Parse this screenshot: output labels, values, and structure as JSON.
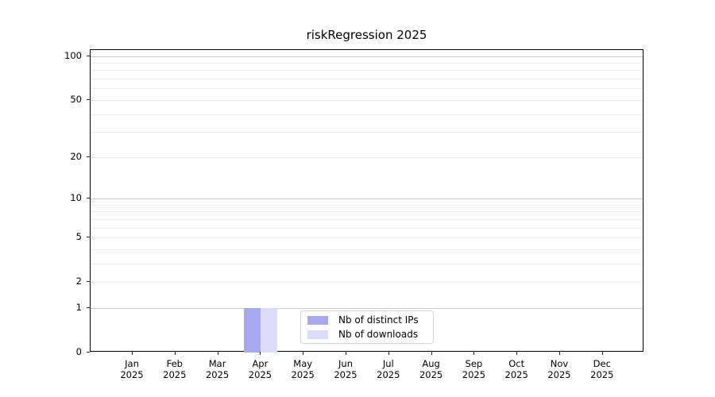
{
  "chart_data": {
    "type": "bar",
    "title": "riskRegression 2025",
    "categories": [
      "Jan",
      "Feb",
      "Mar",
      "Apr",
      "May",
      "Jun",
      "Jul",
      "Aug",
      "Sep",
      "Oct",
      "Nov",
      "Dec"
    ],
    "category_year_line": "2025",
    "series": [
      {
        "name": "Nb of distinct IPs",
        "color": "#a8a8f0",
        "values": [
          0,
          0,
          0,
          1,
          0,
          0,
          0,
          0,
          0,
          0,
          0,
          0
        ]
      },
      {
        "name": "Nb of downloads",
        "color": "#dcdcf8",
        "values": [
          0,
          0,
          0,
          1,
          0,
          0,
          0,
          0,
          0,
          0,
          0,
          0
        ]
      }
    ],
    "xlabel": "",
    "ylabel": "",
    "yscale": "log1p",
    "ylim": [
      0,
      110
    ],
    "y_ticks_labeled": [
      0,
      1,
      2,
      5,
      10,
      20,
      50,
      100
    ],
    "y_grid_major": [
      1,
      10,
      100
    ],
    "y_grid_minor": [
      2,
      3,
      4,
      5,
      6,
      7,
      8,
      9,
      20,
      30,
      40,
      50,
      60,
      70,
      80,
      90
    ],
    "grid": "horizontal",
    "legend_position": "inside lower center"
  },
  "colors": {
    "grid_major": "#c9c9c9",
    "grid_minor": "#ececec",
    "axis": "#000000",
    "legend_border": "#d4d4d4",
    "background": "#ffffff"
  }
}
